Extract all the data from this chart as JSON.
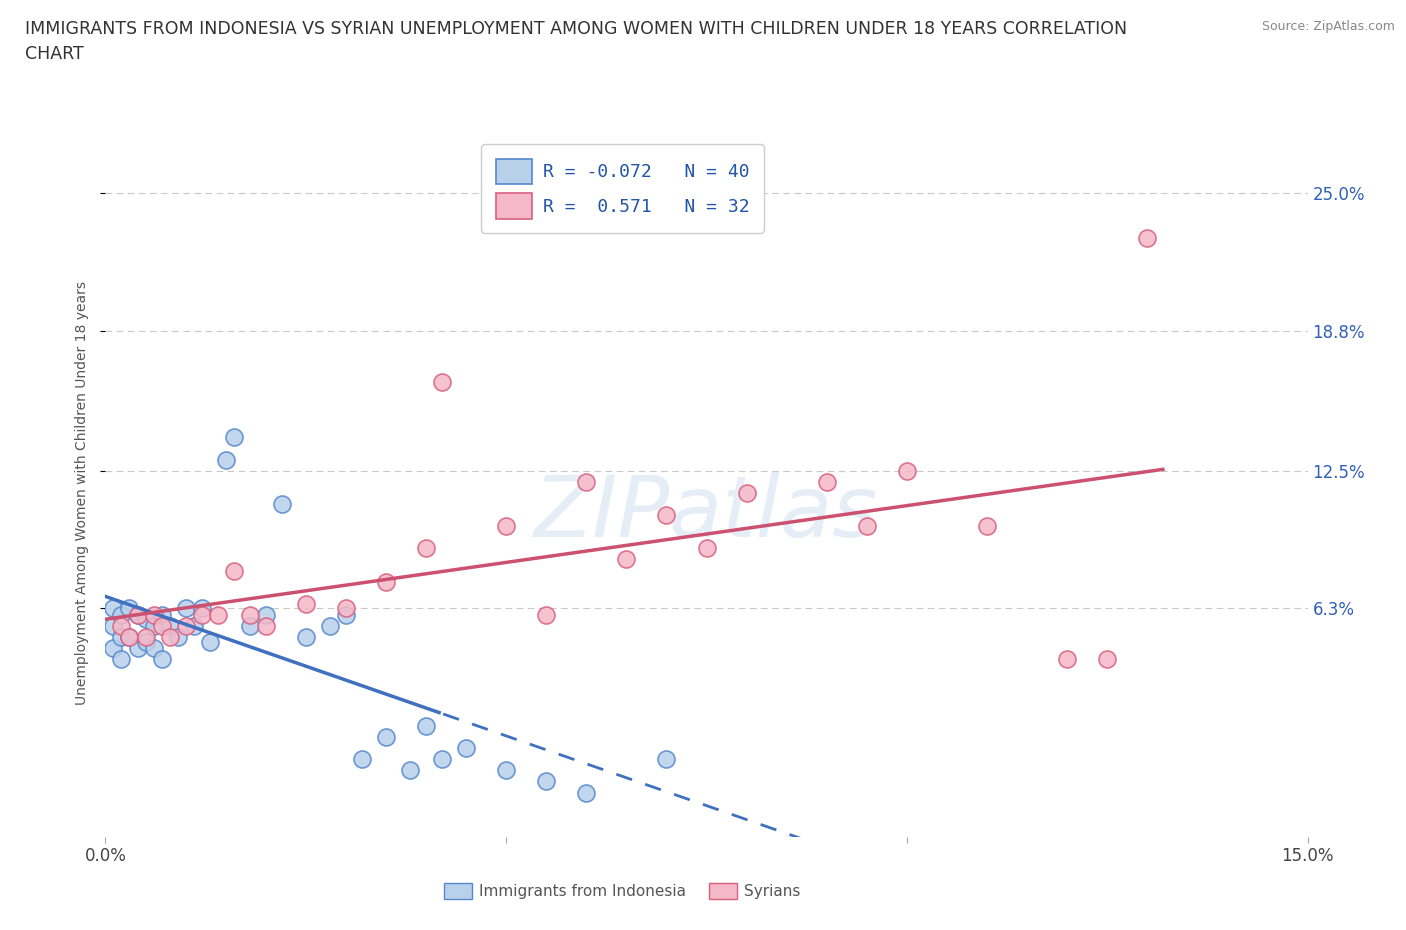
{
  "title_line1": "IMMIGRANTS FROM INDONESIA VS SYRIAN UNEMPLOYMENT AMONG WOMEN WITH CHILDREN UNDER 18 YEARS CORRELATION",
  "title_line2": "CHART",
  "source_text": "Source: ZipAtlas.com",
  "ylabel": "Unemployment Among Women with Children Under 18 years",
  "xmin": 0.0,
  "xmax": 0.15,
  "ymin": -0.04,
  "ymax": 0.27,
  "yticks": [
    0.063,
    0.125,
    0.188,
    0.25
  ],
  "ytick_labels": [
    "6.3%",
    "12.5%",
    "18.8%",
    "25.0%"
  ],
  "r_indonesia": -0.072,
  "n_indonesia": 40,
  "r_syrian": 0.571,
  "n_syrian": 32,
  "watermark": "ZIPatlas",
  "blue_fill": "#b8d0ea",
  "pink_fill": "#f5b8c8",
  "blue_edge": "#5588cc",
  "pink_edge": "#d96080",
  "blue_line": "#4070c0",
  "pink_line": "#cc5070",
  "legend_r_color": "#2255aa",
  "background_color": "#ffffff",
  "grid_color": "#c8c8c8",
  "indonesia_x": [
    0.001,
    0.001,
    0.001,
    0.002,
    0.002,
    0.002,
    0.003,
    0.003,
    0.004,
    0.004,
    0.005,
    0.005,
    0.006,
    0.006,
    0.007,
    0.007,
    0.008,
    0.009,
    0.01,
    0.011,
    0.012,
    0.013,
    0.015,
    0.016,
    0.018,
    0.02,
    0.022,
    0.025,
    0.028,
    0.03,
    0.032,
    0.035,
    0.038,
    0.04,
    0.042,
    0.045,
    0.05,
    0.055,
    0.06,
    0.07
  ],
  "indonesia_y": [
    0.063,
    0.055,
    0.045,
    0.06,
    0.05,
    0.04,
    0.063,
    0.05,
    0.06,
    0.045,
    0.058,
    0.048,
    0.055,
    0.045,
    0.06,
    0.04,
    0.055,
    0.05,
    0.063,
    0.055,
    0.063,
    0.048,
    0.13,
    0.14,
    0.055,
    0.06,
    0.11,
    0.05,
    0.055,
    0.06,
    -0.005,
    0.005,
    -0.01,
    0.01,
    -0.005,
    0.0,
    -0.01,
    -0.015,
    -0.02,
    -0.005
  ],
  "syrian_x": [
    0.002,
    0.003,
    0.004,
    0.005,
    0.006,
    0.007,
    0.008,
    0.01,
    0.012,
    0.014,
    0.016,
    0.018,
    0.02,
    0.025,
    0.03,
    0.035,
    0.04,
    0.042,
    0.05,
    0.055,
    0.06,
    0.065,
    0.07,
    0.075,
    0.08,
    0.09,
    0.095,
    0.1,
    0.11,
    0.12,
    0.125,
    0.13
  ],
  "syrian_y": [
    0.055,
    0.05,
    0.06,
    0.05,
    0.06,
    0.055,
    0.05,
    0.055,
    0.06,
    0.06,
    0.08,
    0.06,
    0.055,
    0.065,
    0.063,
    0.075,
    0.09,
    0.165,
    0.1,
    0.06,
    0.12,
    0.085,
    0.105,
    0.09,
    0.115,
    0.12,
    0.1,
    0.125,
    0.1,
    0.04,
    0.04,
    0.23
  ]
}
